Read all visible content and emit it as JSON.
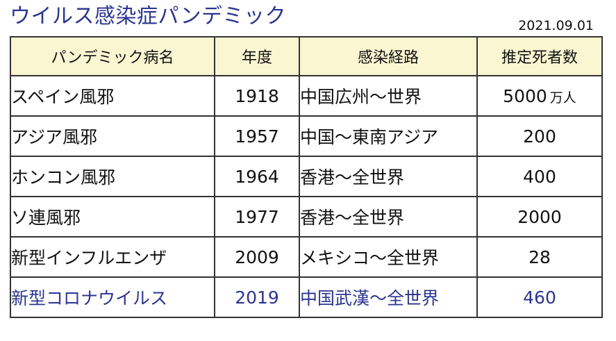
{
  "page": {
    "title": "ウイルス感染症パンデミック",
    "date": "2021.09.01"
  },
  "table": {
    "headers": [
      "パンデミック病名",
      "年度",
      "感染経路",
      "推定死者数"
    ],
    "rows": [
      {
        "name": "スペイン風邪",
        "year": "1918",
        "route": "中国広州～世界",
        "deaths": "5000",
        "unit": "万人"
      },
      {
        "name": "アジア風邪",
        "year": "1957",
        "route": "中国～東南アジア",
        "deaths": "200",
        "unit": ""
      },
      {
        "name": "ホンコン風邪",
        "year": "1964",
        "route": "香港～全世界",
        "deaths": "400",
        "unit": ""
      },
      {
        "name": "ソ連風邪",
        "year": "1977",
        "route": "香港～全世界",
        "deaths": "2000",
        "unit": ""
      },
      {
        "name": "新型インフルエンザ",
        "year": "2009",
        "route": "メキシコ～全世界",
        "deaths": "28",
        "unit": ""
      },
      {
        "name": "新型コロナウイルス",
        "year": "2019",
        "route": "中国武漢～全世界",
        "deaths": "460",
        "unit": ""
      }
    ]
  },
  "colors": {
    "title": "#2b3590",
    "header_background": "#fbf6d2",
    "highlight_row_text": "#2b3590",
    "border": "#333333"
  }
}
